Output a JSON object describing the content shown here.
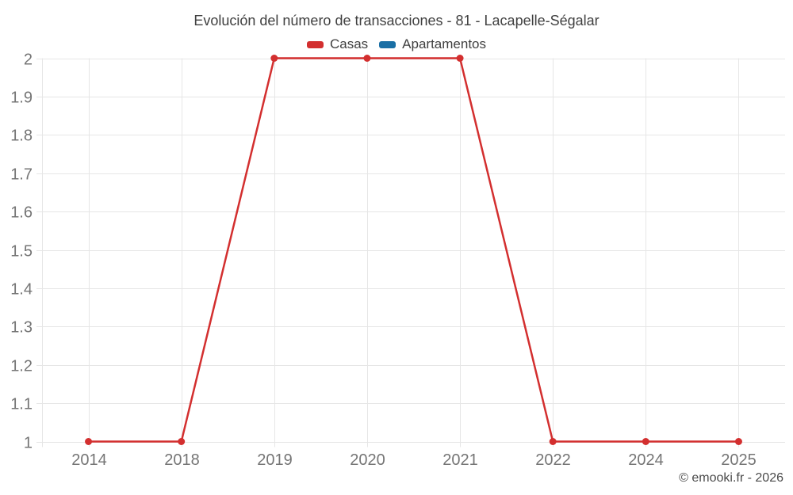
{
  "chart_data": {
    "type": "line",
    "title": "Evolución del número de transacciones - 81 - Lacapelle-Ségalar",
    "x_type": "category",
    "categories": [
      "2014",
      "2018",
      "2019",
      "2020",
      "2021",
      "2022",
      "2024",
      "2025"
    ],
    "series": [
      {
        "name": "Casas",
        "color": "#d32f2f",
        "values": [
          1,
          1,
          2,
          2,
          2,
          1,
          1,
          1
        ]
      },
      {
        "name": "Apartamentos",
        "color": "#1a6fa5",
        "values": []
      }
    ],
    "ylim": [
      1,
      2
    ],
    "yticks": [
      "1",
      "1.1",
      "1.2",
      "1.3",
      "1.4",
      "1.5",
      "1.6",
      "1.7",
      "1.8",
      "1.9",
      "2"
    ],
    "xlabel": "",
    "ylabel": "",
    "grid": true,
    "legend_position": "top",
    "marker": "circle"
  },
  "footer": {
    "copyright": "© emooki.fr - 2026"
  },
  "colors": {
    "grid": "#e6e6e6",
    "tick_text": "#757575",
    "title_text": "#404040",
    "copyright_text": "#4a4a4a"
  }
}
